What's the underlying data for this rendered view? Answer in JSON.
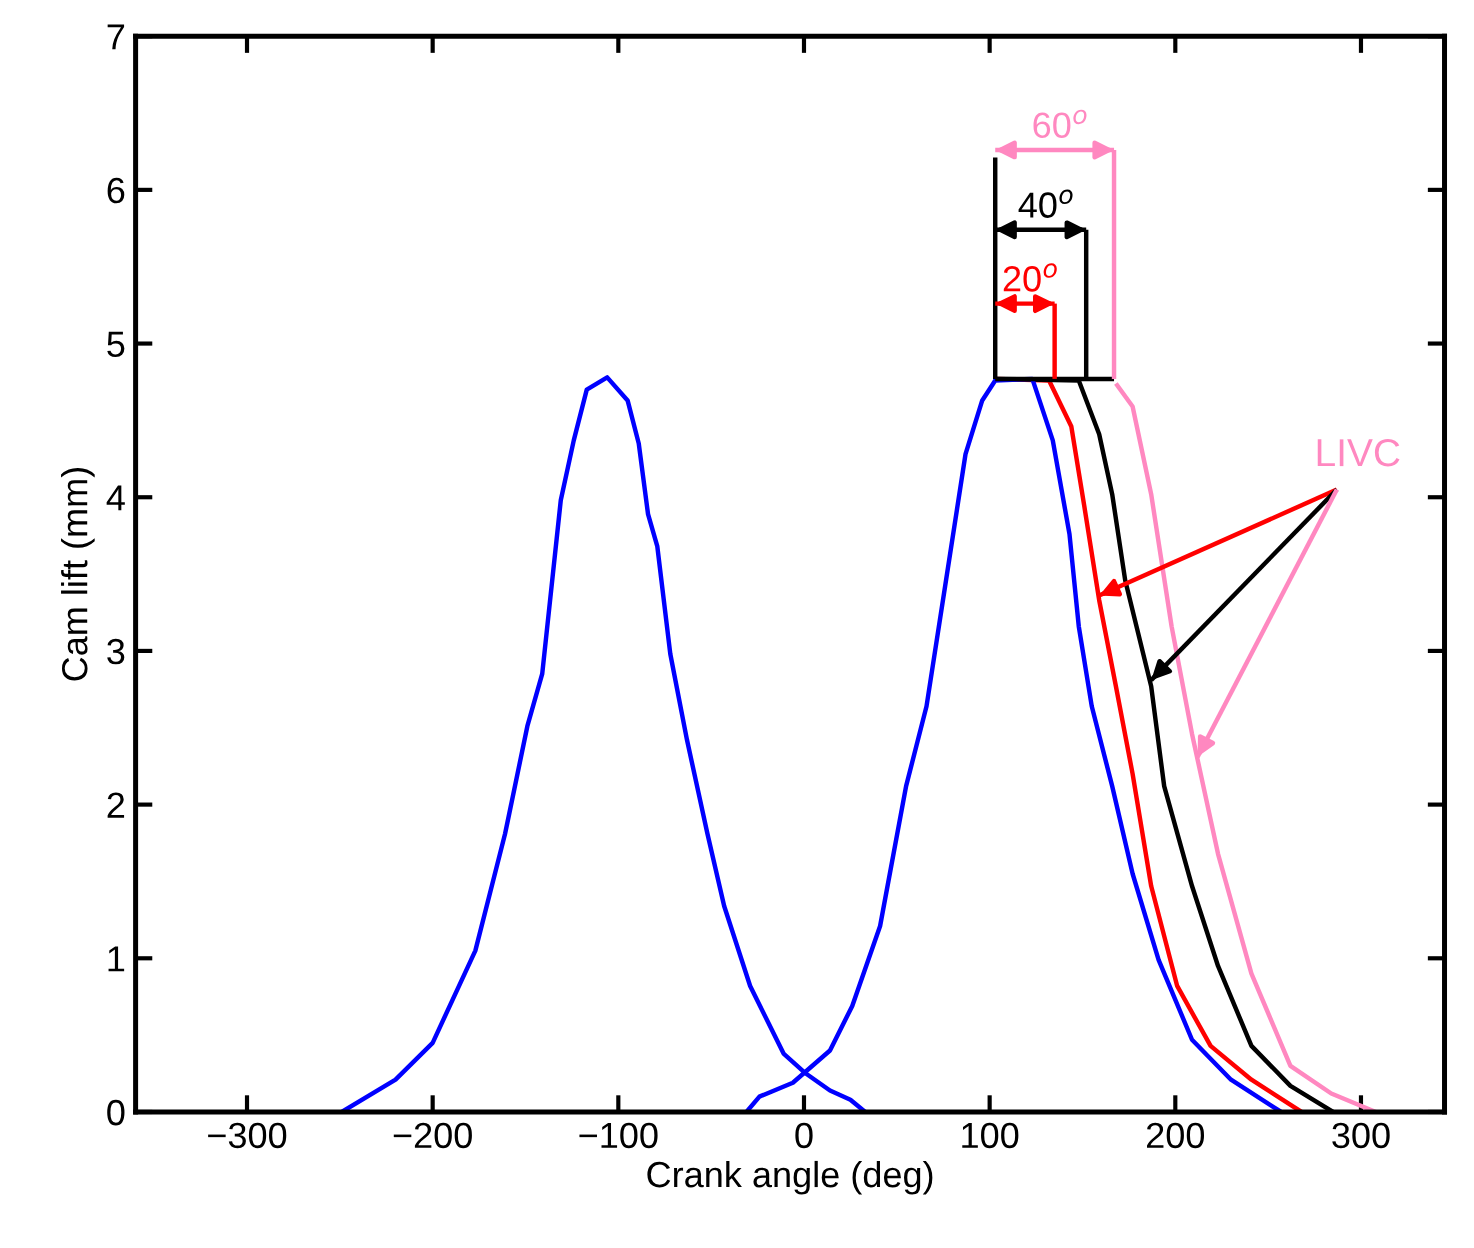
{
  "chart_data": {
    "type": "line",
    "xlabel": "Crank angle (deg)",
    "ylabel": "Cam lift (mm)",
    "xlim": [
      -360,
      345
    ],
    "ylim": [
      0,
      7
    ],
    "xticks": [
      -300,
      -200,
      -100,
      0,
      100,
      200,
      300
    ],
    "yticks": [
      0,
      1,
      2,
      3,
      4,
      5,
      6,
      7
    ],
    "grid": false,
    "series": [
      {
        "color": "#ff0000",
        "x": [
          103,
          132,
          144,
          151,
          159,
          168,
          177,
          187,
          201,
          219,
          241,
          268
        ],
        "values": [
          4.77,
          4.76,
          4.46,
          3.94,
          3.33,
          2.77,
          2.2,
          1.47,
          0.82,
          0.43,
          0.21,
          0
        ]
      },
      {
        "color": "#000000",
        "x": [
          103,
          148,
          159,
          166,
          173,
          187,
          194,
          209,
          223,
          241,
          262,
          285
        ],
        "values": [
          4.77,
          4.76,
          4.41,
          4.02,
          3.46,
          2.77,
          2.12,
          1.47,
          0.95,
          0.43,
          0.17,
          0
        ]
      },
      {
        "color": "#ff88c0",
        "x": [
          168,
          177,
          187,
          198,
          209,
          223,
          241,
          262,
          284,
          308
        ],
        "values": [
          4.74,
          4.59,
          4.02,
          3.16,
          2.46,
          1.68,
          0.9,
          0.3,
          0.12,
          0
        ]
      },
      {
        "color": "#0000ff",
        "x": [
          -249,
          -220,
          -200,
          -177,
          -161,
          -149,
          -141,
          -131,
          -124,
          -117,
          -106,
          -95,
          -89,
          -84,
          -79,
          -72,
          -63,
          -52,
          -43,
          -29,
          -11,
          1,
          14,
          25,
          33
        ],
        "values": [
          0,
          0.21,
          0.45,
          1.05,
          1.81,
          2.51,
          2.85,
          3.98,
          4.37,
          4.7,
          4.78,
          4.63,
          4.35,
          3.89,
          3.68,
          2.98,
          2.42,
          1.81,
          1.34,
          0.82,
          0.38,
          0.25,
          0.14,
          0.08,
          0
        ]
      },
      {
        "color": "#0000ff",
        "x": [
          -31,
          -24,
          -6,
          14,
          26,
          41,
          55,
          66,
          76,
          87,
          96,
          103,
          123,
          134,
          143,
          148,
          155,
          166,
          177,
          191,
          209,
          230,
          257
        ],
        "values": [
          0,
          0.1,
          0.19,
          0.4,
          0.69,
          1.21,
          2.12,
          2.64,
          3.42,
          4.28,
          4.63,
          4.76,
          4.77,
          4.37,
          3.76,
          3.16,
          2.64,
          2.12,
          1.55,
          0.99,
          0.47,
          0.21,
          0
        ]
      },
      {
        "color": "#000000",
        "x": [
          103,
          167
        ],
        "values": [
          4.77,
          4.77
        ]
      },
      {
        "color": "#000000",
        "x": [
          103,
          103
        ],
        "values": [
          4.77,
          6.21
        ]
      },
      {
        "color": "#ff0000",
        "x": [
          135,
          135
        ],
        "values": [
          4.77,
          5.26
        ]
      },
      {
        "color": "#000000",
        "x": [
          152,
          152
        ],
        "values": [
          4.77,
          5.74
        ]
      },
      {
        "color": "#ff88c0",
        "x": [
          167,
          167
        ],
        "values": [
          4.77,
          6.26
        ]
      },
      {
        "color": "#ff0000",
        "x": [
          103,
          135
        ],
        "values": [
          5.26,
          5.26
        ]
      },
      {
        "color": "#000000",
        "x": [
          103,
          152
        ],
        "values": [
          5.74,
          5.74
        ]
      },
      {
        "color": "#ff88c0",
        "x": [
          103,
          167
        ],
        "values": [
          6.26,
          6.26
        ]
      },
      {
        "color": "#ff0000",
        "x": [
          287,
          159
        ],
        "values": [
          4.05,
          3.36
        ]
      },
      {
        "color": "#000000",
        "x": [
          287,
          187
        ],
        "values": [
          4.05,
          2.81
        ]
      },
      {
        "color": "#ff88c0",
        "x": [
          287,
          212
        ],
        "values": [
          4.05,
          2.31
        ]
      }
    ],
    "legend": false,
    "annotations": [
      "20$^{o}$",
      "40$^{o}$",
      "60$^{o}$",
      "LIVC"
    ]
  }
}
